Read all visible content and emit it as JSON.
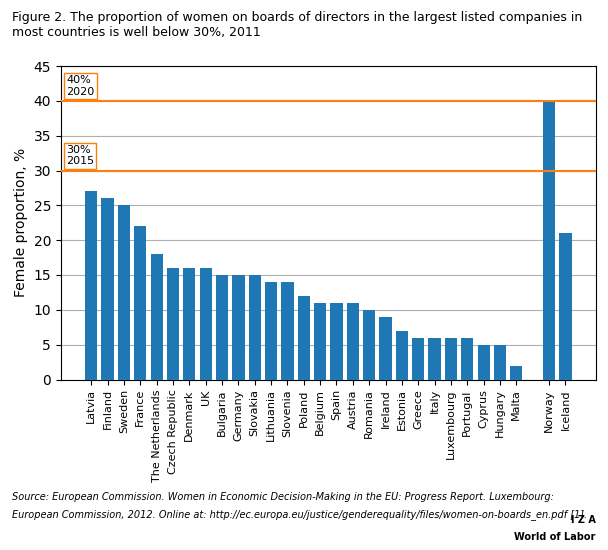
{
  "chart_data": {
    "type": "bar",
    "title": "Figure 2. The proportion of women on boards of directors in the largest listed companies in\nmost countries is well below 30%, 2011",
    "categories": [
      "Latvia",
      "Finland",
      "Sweden",
      "France",
      "The Netherlands",
      "Czech Republic",
      "Denmark",
      "UK",
      "Bulgaria",
      "Germany",
      "Slovakia",
      "Lithuania",
      "Slovenia",
      "Poland",
      "Belgium",
      "Spain",
      "Austria",
      "Romania",
      "Ireland",
      "Estonia",
      "Greece",
      "Italy",
      "Luxembourg",
      "Portugal",
      "Cyprus",
      "Hungary",
      "Malta",
      null,
      "Norway",
      "Iceland"
    ],
    "values": [
      27,
      26,
      25,
      22,
      18,
      16,
      16,
      16,
      15,
      15,
      15,
      14,
      14,
      12,
      11,
      11,
      11,
      10,
      9,
      7,
      6,
      6,
      6,
      6,
      5,
      5,
      2,
      0,
      40,
      21
    ],
    "ylabel": "Female proportion, %",
    "ylim": [
      0,
      45
    ],
    "yticks": [
      0,
      5,
      10,
      15,
      20,
      25,
      30,
      35,
      40,
      45
    ],
    "grid": true,
    "reference_lines": [
      {
        "value": 40,
        "label": "40%\n2020"
      },
      {
        "value": 30,
        "label": "30%\n2015"
      }
    ],
    "source": [
      "Source: European Commission. Women in Economic Decision-Making in the EU: Progress Report. Luxembourg:",
      "European Commission, 2012. Online at: http://ec.europa.eu/justice/genderequality/files/women-on-boards_en.pdf [1]."
    ],
    "logo": [
      "I Z A",
      "World of Labor"
    ]
  }
}
